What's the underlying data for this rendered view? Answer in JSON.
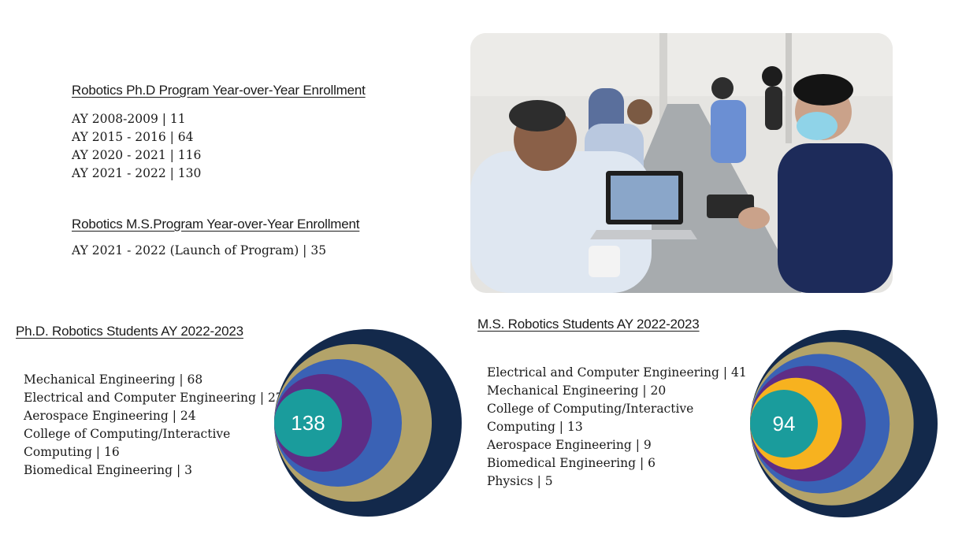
{
  "phd_enrollment": {
    "heading": "Robotics Ph.D Program Year-over-Year Enrollment",
    "items": [
      "AY 2008-2009 | 11",
      "AY 2015 - 2016 | 64",
      "AY 2020 - 2021 | 116",
      "AY 2021 - 2022 | 130"
    ]
  },
  "ms_enrollment": {
    "heading": "Robotics M.S.Program Year-over-Year Enrollment",
    "items": [
      "AY 2021 - 2022 (Launch of Program) | 35"
    ]
  },
  "phd_students": {
    "heading": "Ph.D. Robotics Students AY 2022-2023",
    "items": [
      "Mechanical Engineering | 68",
      "Electrical and Computer Engineering | 27",
      "Aerospace Engineering | 24",
      "College of Computing/Interactive Computing | 16",
      "Biomedical Engineering | 3"
    ]
  },
  "ms_students": {
    "heading": "M.S. Robotics Students AY 2022-2023",
    "items": [
      "Electrical and Computer Engineering | 41",
      "Mechanical Engineering | 20",
      "College of Computing/Interactive Computing | 13",
      "Aerospace Engineering | 9",
      "Biomedical Engineering | 6",
      "Physics | 5"
    ]
  },
  "chart_data": [
    {
      "type": "nested-circles",
      "total": "138",
      "categories": [
        "Ring 1",
        "Ring 2",
        "Ring 3",
        "Ring 4",
        "Center"
      ],
      "colors": [
        "#13294b",
        "#b3a369",
        "#3a62b5",
        "#5e2d86",
        "#1a9c9c"
      ]
    },
    {
      "type": "nested-circles",
      "total": "94",
      "categories": [
        "Ring 1",
        "Ring 2",
        "Ring 3",
        "Ring 4",
        "Ring 5",
        "Center"
      ],
      "colors": [
        "#13294b",
        "#b3a369",
        "#3a62b5",
        "#5e2d86",
        "#f7b21f",
        "#1a9c9c"
      ]
    }
  ],
  "photo": {
    "description_icon": "people-meeting-photo"
  }
}
